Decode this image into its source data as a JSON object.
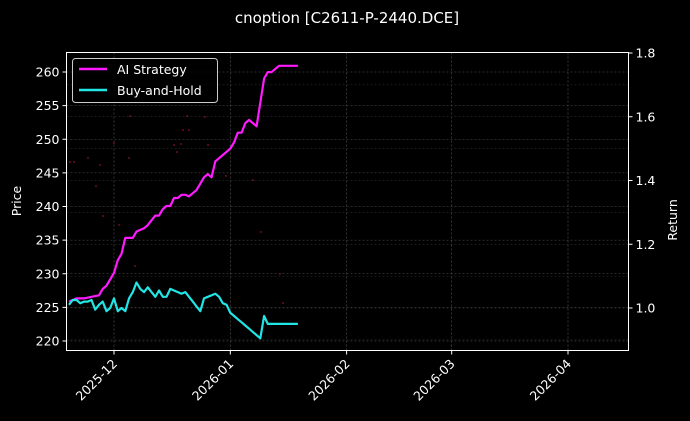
{
  "chart_data": {
    "type": "line",
    "title": "cnoption [C2611-P-2440.DCE]",
    "xlabel": "",
    "ylabel_left": "Price",
    "ylabel_right": "Return",
    "x_ticks": [
      "2025-12",
      "2026-01",
      "2026-02",
      "2026-03",
      "2026-04"
    ],
    "y_left_ticks": [
      220,
      225,
      230,
      235,
      240,
      245,
      250,
      255,
      260
    ],
    "y_right_ticks": [
      1.0,
      1.2,
      1.4,
      1.6,
      1.8
    ],
    "y_left_lim": [
      218.5,
      263
    ],
    "y_right_lim": [
      0.865,
      1.8
    ],
    "x_lim_days": [
      -12,
      153
    ],
    "grid": true,
    "legend_position": "upper left",
    "colors": {
      "background": "#000000",
      "ai_strategy": "#ff1aff",
      "buy_and_hold": "#22e5e5",
      "grid": "#555555",
      "scatter": "#8a1030"
    },
    "series": [
      {
        "name": "AI Strategy",
        "axis": "right",
        "color": "#ff1aff",
        "x_days": [
          -12,
          -10,
          -8,
          -6,
          -4,
          -3,
          -2,
          -1,
          0,
          1,
          2,
          3,
          4,
          5,
          6,
          7,
          8,
          9,
          10,
          11,
          12,
          13,
          14,
          15,
          16,
          17,
          18,
          19,
          20,
          21,
          22,
          23,
          24,
          25,
          26,
          27,
          28,
          29,
          30,
          31,
          32,
          33,
          34,
          35,
          36,
          37,
          38,
          40,
          41,
          42,
          43,
          44,
          45,
          46,
          47,
          48,
          49
        ],
        "values": [
          1.02,
          1.03,
          1.03,
          1.035,
          1.04,
          1.06,
          1.07,
          1.09,
          1.11,
          1.15,
          1.17,
          1.22,
          1.22,
          1.22,
          1.24,
          1.245,
          1.25,
          1.26,
          1.275,
          1.29,
          1.29,
          1.31,
          1.32,
          1.32,
          1.345,
          1.345,
          1.355,
          1.355,
          1.35,
          1.36,
          1.37,
          1.39,
          1.41,
          1.42,
          1.41,
          1.46,
          1.47,
          1.48,
          1.49,
          1.5,
          1.52,
          1.55,
          1.55,
          1.58,
          1.59,
          1.58,
          1.57,
          1.72,
          1.74,
          1.74,
          1.75,
          1.76,
          1.76,
          1.76,
          1.76,
          1.76,
          1.76
        ]
      },
      {
        "name": "Buy-and-Hold",
        "axis": "right",
        "color": "#22e5e5",
        "x_days": [
          -12,
          -11,
          -10,
          -9,
          -8,
          -7,
          -6,
          -5,
          -4,
          -3,
          -2,
          -1,
          0,
          1,
          2,
          3,
          4,
          5,
          6,
          7,
          8,
          9,
          10,
          11,
          12,
          13,
          14,
          15,
          16,
          17,
          18,
          19,
          20,
          21,
          22,
          23,
          24,
          25,
          26,
          27,
          28,
          29,
          30,
          31,
          32,
          33,
          34,
          35,
          36,
          37,
          38,
          39,
          40,
          41,
          42,
          43,
          44,
          45,
          46,
          47,
          48,
          49
        ],
        "values": [
          1.01,
          1.025,
          1.025,
          1.015,
          1.02,
          1.02,
          1.025,
          0.995,
          1.01,
          1.02,
          0.99,
          1.0,
          1.03,
          0.99,
          1.0,
          0.99,
          1.03,
          1.05,
          1.08,
          1.06,
          1.05,
          1.065,
          1.05,
          1.035,
          1.055,
          1.035,
          1.035,
          1.06,
          1.055,
          1.05,
          1.045,
          1.05,
          1.035,
          1.02,
          1.005,
          0.99,
          1.03,
          1.035,
          1.04,
          1.045,
          1.035,
          1.015,
          1.01,
          0.985,
          0.975,
          0.965,
          0.955,
          0.945,
          0.935,
          0.925,
          0.915,
          0.905,
          0.975,
          0.95,
          0.95,
          0.95,
          0.95,
          0.95,
          0.95,
          0.95,
          0.95,
          0.95
        ],
        "note": "approximate readings; series ends near 2026-01-15"
      }
    ]
  },
  "legend": {
    "items": [
      {
        "label": "AI Strategy",
        "color": "#ff1aff"
      },
      {
        "label": "Buy-and-Hold",
        "color": "#22e5e5"
      }
    ]
  }
}
